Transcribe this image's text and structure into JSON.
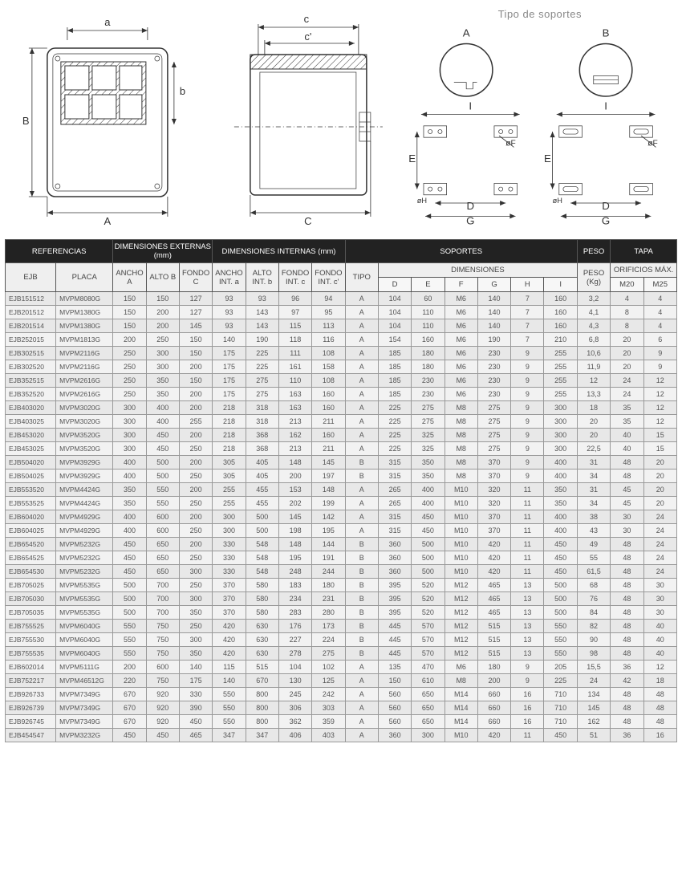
{
  "header": {
    "supports_title": "Tipo de soportes",
    "support_a": "A",
    "support_b": "B"
  },
  "diagram_labels": {
    "a_small": "a",
    "b_small": "b",
    "A_big": "A",
    "B_big": "B",
    "c_small": "c",
    "c_prime": "c'",
    "C_big": "C",
    "D": "D",
    "E": "E",
    "F": "øF",
    "G": "G",
    "H": "øH",
    "I": "I"
  },
  "table": {
    "group_headers": {
      "ref": "REFERENCIAS",
      "ext": "DIMENSIONES EXTERNAS (mm)",
      "int": "DIMENSIONES INTERNAS (mm)",
      "sop": "SOPORTES",
      "peso": "PESO",
      "tapa": "TAPA"
    },
    "sub_headers": {
      "ejb": "EJB",
      "placa": "PLACA",
      "anchoA": "ANCHO A",
      "altoB": "ALTO B",
      "fondoC": "FONDO C",
      "anchoInt": "ANCHO INT. a",
      "altoInt": "ALTO INT. b",
      "fondoIntC": "FONDO INT. c",
      "fondoIntCp": "FONDO INT. c'",
      "tipo": "TIPO",
      "dimensiones": "DIMENSIONES",
      "D": "D",
      "E": "E",
      "F": "F",
      "G": "G",
      "H": "H",
      "I": "I",
      "pesoKg": "PESO (Kg)",
      "orificios": "ORIFICIOS MÁX.",
      "m20": "M20",
      "m25": "M25"
    },
    "rows": [
      [
        "EJB151512",
        "MVPM8080G",
        "150",
        "150",
        "127",
        "93",
        "93",
        "96",
        "94",
        "A",
        "104",
        "60",
        "M6",
        "140",
        "7",
        "160",
        "3,2",
        "4",
        "4"
      ],
      [
        "EJB201512",
        "MVPM1380G",
        "150",
        "200",
        "127",
        "93",
        "143",
        "97",
        "95",
        "A",
        "104",
        "110",
        "M6",
        "140",
        "7",
        "160",
        "4,1",
        "8",
        "4"
      ],
      [
        "EJB201514",
        "MVPM1380G",
        "150",
        "200",
        "145",
        "93",
        "143",
        "115",
        "113",
        "A",
        "104",
        "110",
        "M6",
        "140",
        "7",
        "160",
        "4,3",
        "8",
        "4"
      ],
      [
        "EJB252015",
        "MVPM1813G",
        "200",
        "250",
        "150",
        "140",
        "190",
        "118",
        "116",
        "A",
        "154",
        "160",
        "M6",
        "190",
        "7",
        "210",
        "6,8",
        "20",
        "6"
      ],
      [
        "EJB302515",
        "MVPM2116G",
        "250",
        "300",
        "150",
        "175",
        "225",
        "111",
        "108",
        "A",
        "185",
        "180",
        "M6",
        "230",
        "9",
        "255",
        "10,6",
        "20",
        "9"
      ],
      [
        "EJB302520",
        "MVPM2116G",
        "250",
        "300",
        "200",
        "175",
        "225",
        "161",
        "158",
        "A",
        "185",
        "180",
        "M6",
        "230",
        "9",
        "255",
        "11,9",
        "20",
        "9"
      ],
      [
        "EJB352515",
        "MVPM2616G",
        "250",
        "350",
        "150",
        "175",
        "275",
        "110",
        "108",
        "A",
        "185",
        "230",
        "M6",
        "230",
        "9",
        "255",
        "12",
        "24",
        "12"
      ],
      [
        "EJB352520",
        "MVPM2616G",
        "250",
        "350",
        "200",
        "175",
        "275",
        "163",
        "160",
        "A",
        "185",
        "230",
        "M6",
        "230",
        "9",
        "255",
        "13,3",
        "24",
        "12"
      ],
      [
        "EJB403020",
        "MVPM3020G",
        "300",
        "400",
        "200",
        "218",
        "318",
        "163",
        "160",
        "A",
        "225",
        "275",
        "M8",
        "275",
        "9",
        "300",
        "18",
        "35",
        "12"
      ],
      [
        "EJB403025",
        "MVPM3020G",
        "300",
        "400",
        "255",
        "218",
        "318",
        "213",
        "211",
        "A",
        "225",
        "275",
        "M8",
        "275",
        "9",
        "300",
        "20",
        "35",
        "12"
      ],
      [
        "EJB453020",
        "MVPM3520G",
        "300",
        "450",
        "200",
        "218",
        "368",
        "162",
        "160",
        "A",
        "225",
        "325",
        "M8",
        "275",
        "9",
        "300",
        "20",
        "40",
        "15"
      ],
      [
        "EJB453025",
        "MVPM3520G",
        "300",
        "450",
        "250",
        "218",
        "368",
        "213",
        "211",
        "A",
        "225",
        "325",
        "M8",
        "275",
        "9",
        "300",
        "22,5",
        "40",
        "15"
      ],
      [
        "EJB504020",
        "MVPM3929G",
        "400",
        "500",
        "200",
        "305",
        "405",
        "148",
        "145",
        "B",
        "315",
        "350",
        "M8",
        "370",
        "9",
        "400",
        "31",
        "48",
        "20"
      ],
      [
        "EJB504025",
        "MVPM3929G",
        "400",
        "500",
        "250",
        "305",
        "405",
        "200",
        "197",
        "B",
        "315",
        "350",
        "M8",
        "370",
        "9",
        "400",
        "34",
        "48",
        "20"
      ],
      [
        "EJB553520",
        "MVPM4424G",
        "350",
        "550",
        "200",
        "255",
        "455",
        "153",
        "148",
        "A",
        "265",
        "400",
        "M10",
        "320",
        "11",
        "350",
        "31",
        "45",
        "20"
      ],
      [
        "EJB553525",
        "MVPM4424G",
        "350",
        "550",
        "250",
        "255",
        "455",
        "202",
        "199",
        "A",
        "265",
        "400",
        "M10",
        "320",
        "11",
        "350",
        "34",
        "45",
        "20"
      ],
      [
        "EJB604020",
        "MVPM4929G",
        "400",
        "600",
        "200",
        "300",
        "500",
        "145",
        "142",
        "A",
        "315",
        "450",
        "M10",
        "370",
        "11",
        "400",
        "38",
        "30",
        "24"
      ],
      [
        "EJB604025",
        "MVPM4929G",
        "400",
        "600",
        "250",
        "300",
        "500",
        "198",
        "195",
        "A",
        "315",
        "450",
        "M10",
        "370",
        "11",
        "400",
        "43",
        "30",
        "24"
      ],
      [
        "EJB654520",
        "MVPM5232G",
        "450",
        "650",
        "200",
        "330",
        "548",
        "148",
        "144",
        "B",
        "360",
        "500",
        "M10",
        "420",
        "11",
        "450",
        "49",
        "48",
        "24"
      ],
      [
        "EJB654525",
        "MVPM5232G",
        "450",
        "650",
        "250",
        "330",
        "548",
        "195",
        "191",
        "B",
        "360",
        "500",
        "M10",
        "420",
        "11",
        "450",
        "55",
        "48",
        "24"
      ],
      [
        "EJB654530",
        "MVPM5232G",
        "450",
        "650",
        "300",
        "330",
        "548",
        "248",
        "244",
        "B",
        "360",
        "500",
        "M10",
        "420",
        "11",
        "450",
        "61,5",
        "48",
        "24"
      ],
      [
        "EJB705025",
        "MVPM5535G",
        "500",
        "700",
        "250",
        "370",
        "580",
        "183",
        "180",
        "B",
        "395",
        "520",
        "M12",
        "465",
        "13",
        "500",
        "68",
        "48",
        "30"
      ],
      [
        "EJB705030",
        "MVPM5535G",
        "500",
        "700",
        "300",
        "370",
        "580",
        "234",
        "231",
        "B",
        "395",
        "520",
        "M12",
        "465",
        "13",
        "500",
        "76",
        "48",
        "30"
      ],
      [
        "EJB705035",
        "MVPM5535G",
        "500",
        "700",
        "350",
        "370",
        "580",
        "283",
        "280",
        "B",
        "395",
        "520",
        "M12",
        "465",
        "13",
        "500",
        "84",
        "48",
        "30"
      ],
      [
        "EJB755525",
        "MVPM6040G",
        "550",
        "750",
        "250",
        "420",
        "630",
        "176",
        "173",
        "B",
        "445",
        "570",
        "M12",
        "515",
        "13",
        "550",
        "82",
        "48",
        "40"
      ],
      [
        "EJB755530",
        "MVPM6040G",
        "550",
        "750",
        "300",
        "420",
        "630",
        "227",
        "224",
        "B",
        "445",
        "570",
        "M12",
        "515",
        "13",
        "550",
        "90",
        "48",
        "40"
      ],
      [
        "EJB755535",
        "MVPM6040G",
        "550",
        "750",
        "350",
        "420",
        "630",
        "278",
        "275",
        "B",
        "445",
        "570",
        "M12",
        "515",
        "13",
        "550",
        "98",
        "48",
        "40"
      ],
      [
        "EJB602014",
        "MVPM5111G",
        "200",
        "600",
        "140",
        "115",
        "515",
        "104",
        "102",
        "A",
        "135",
        "470",
        "M6",
        "180",
        "9",
        "205",
        "15,5",
        "36",
        "12"
      ],
      [
        "EJB752217",
        "MVPM46512G",
        "220",
        "750",
        "175",
        "140",
        "670",
        "130",
        "125",
        "A",
        "150",
        "610",
        "M8",
        "200",
        "9",
        "225",
        "24",
        "42",
        "18"
      ],
      [
        "EJB926733",
        "MVPM7349G",
        "670",
        "920",
        "330",
        "550",
        "800",
        "245",
        "242",
        "A",
        "560",
        "650",
        "M14",
        "660",
        "16",
        "710",
        "134",
        "48",
        "48"
      ],
      [
        "EJB926739",
        "MVPM7349G",
        "670",
        "920",
        "390",
        "550",
        "800",
        "306",
        "303",
        "A",
        "560",
        "650",
        "M14",
        "660",
        "16",
        "710",
        "145",
        "48",
        "48"
      ],
      [
        "EJB926745",
        "MVPM7349G",
        "670",
        "920",
        "450",
        "550",
        "800",
        "362",
        "359",
        "A",
        "560",
        "650",
        "M14",
        "660",
        "16",
        "710",
        "162",
        "48",
        "48"
      ],
      [
        "EJB454547",
        "MVPM3232G",
        "450",
        "450",
        "465",
        "347",
        "347",
        "406",
        "403",
        "A",
        "360",
        "300",
        "M10",
        "420",
        "11",
        "450",
        "51",
        "36",
        "16"
      ]
    ]
  },
  "style": {
    "header_bg": "#222222",
    "header_fg": "#ffffff",
    "row_even_bg": "#f2f2f2",
    "row_odd_bg": "#e8e8e8",
    "border_color": "#999999",
    "diagram_stroke": "#333333"
  }
}
